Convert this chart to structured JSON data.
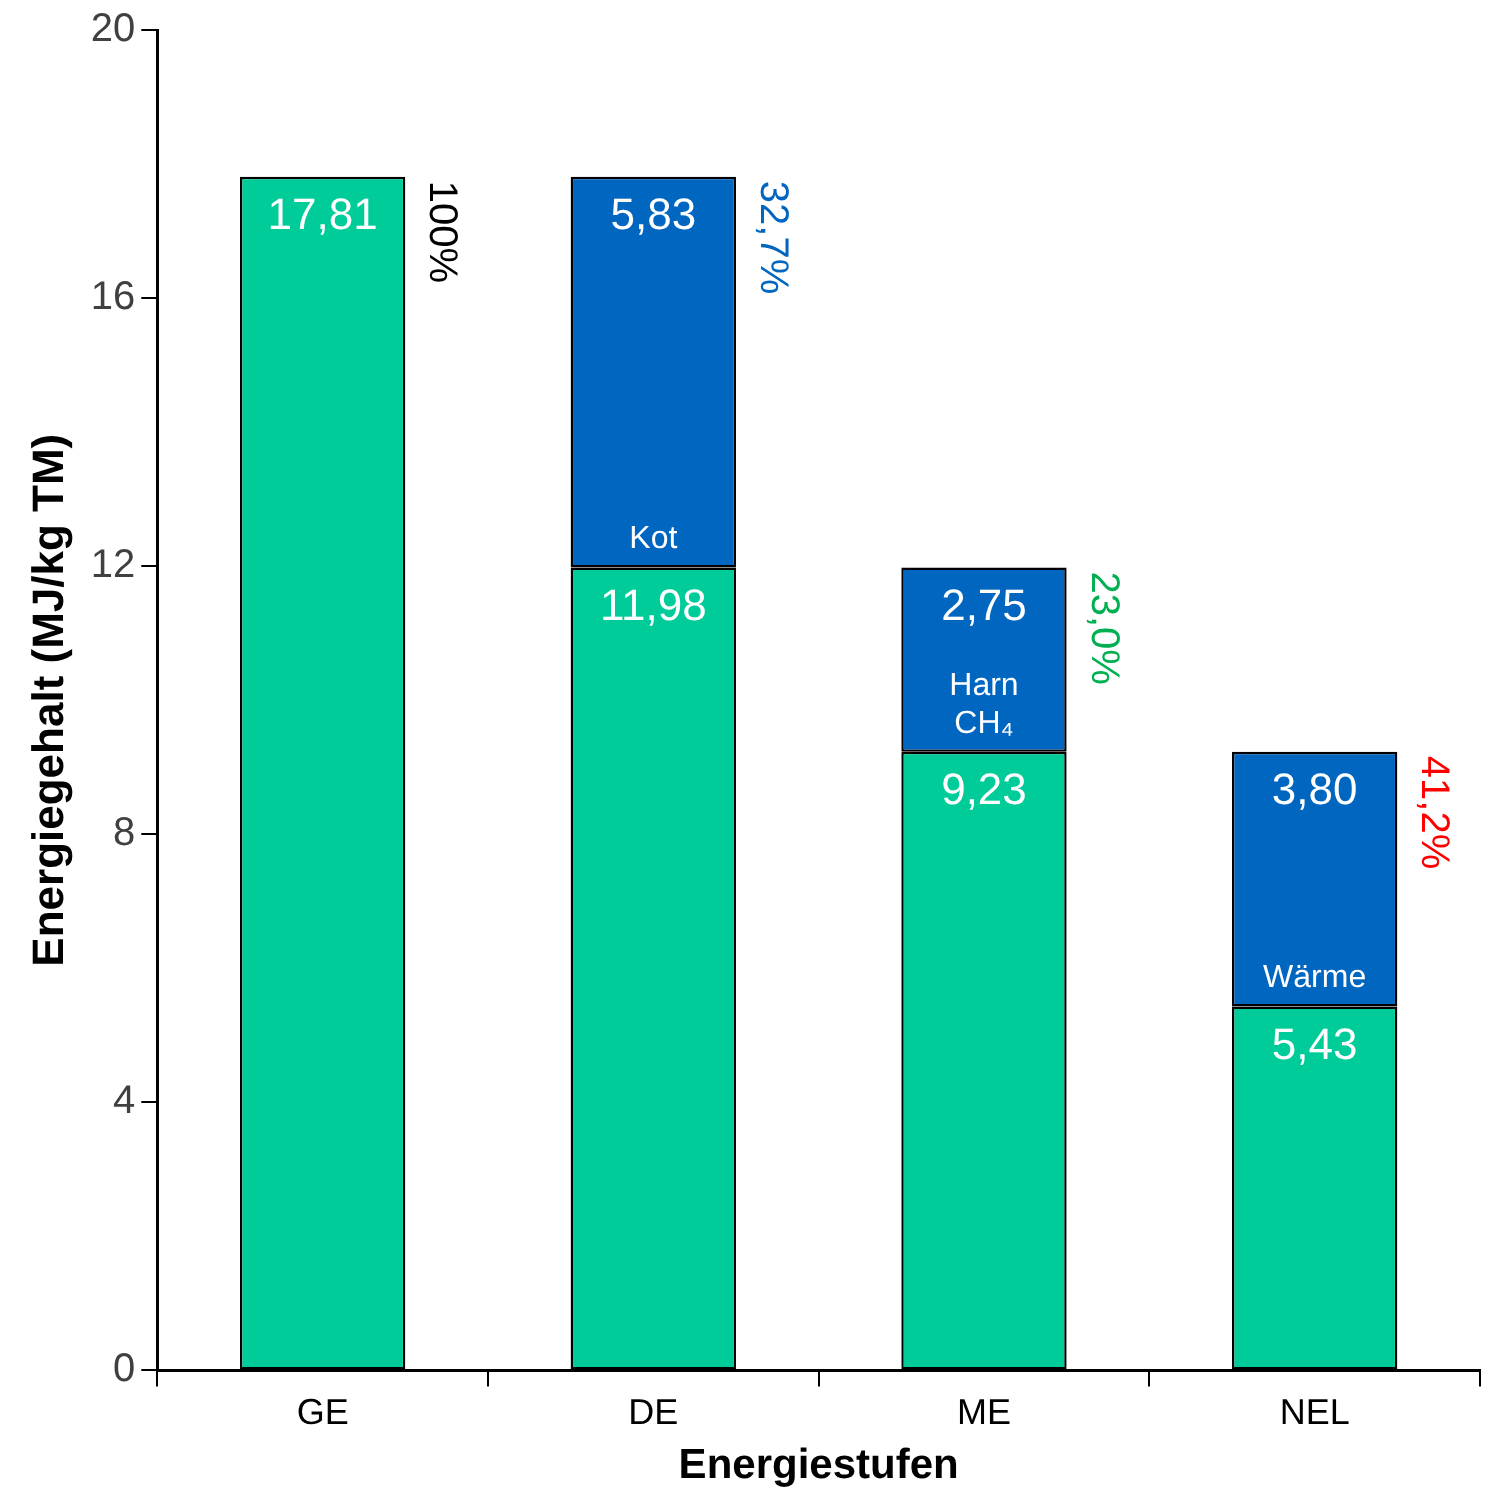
{
  "chart_data": {
    "type": "bar",
    "stacked": true,
    "xlabel": "Energiestufen",
    "ylabel": "Energiegehalt (MJ/kg TM)",
    "categories": [
      "GE",
      "DE",
      "ME",
      "NEL"
    ],
    "series": [
      {
        "color": "#00cc99",
        "values": [
          17.81,
          11.98,
          9.23,
          5.43
        ],
        "value_labels": [
          "17,81",
          "11,98",
          "9,23",
          "5,43"
        ]
      },
      {
        "color": "#0066c0",
        "values": [
          null,
          5.83,
          2.75,
          3.8
        ],
        "value_labels": [
          null,
          "5,83",
          "2,75",
          "3,80"
        ]
      }
    ],
    "ylim": [
      0,
      20
    ],
    "yticks": [
      0,
      4,
      8,
      12,
      16,
      20
    ],
    "grid": false,
    "legend": false,
    "annotations": [
      {
        "text": "100%",
        "x": "GE",
        "y": 17.81
      },
      {
        "text": "32,7%",
        "x": "DE",
        "y": 17.81
      },
      {
        "text": "23,0%",
        "x": "ME",
        "y": 11.98
      },
      {
        "text": "41,2%",
        "x": "NEL",
        "y": 9.23
      },
      "Kot",
      "Harn CH₄",
      "Wärme"
    ]
  }
}
